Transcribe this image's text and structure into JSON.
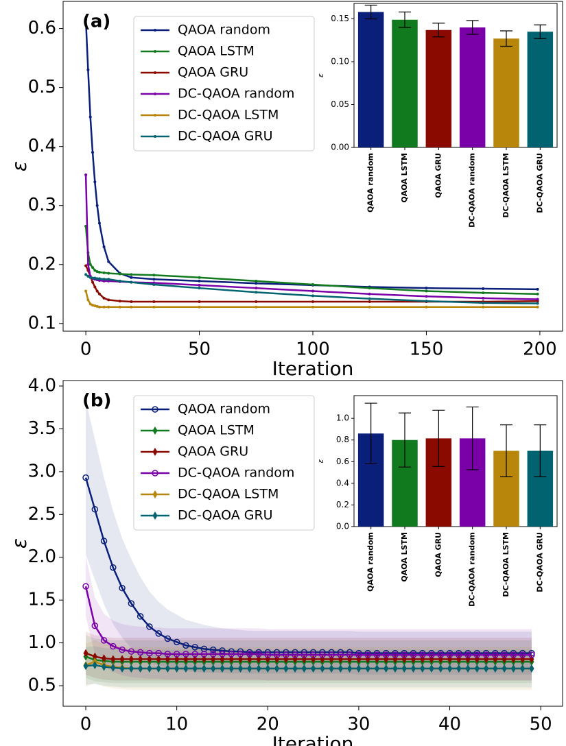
{
  "chart_data": [
    {
      "type": "line",
      "annotation": "(a)",
      "xlabel": "Iteration",
      "ylabel": "ε",
      "xlim": [
        -10,
        210
      ],
      "xticks": [
        0,
        50,
        100,
        150,
        200
      ],
      "ylim": [
        0.087,
        0.646
      ],
      "yticks": [
        0.1,
        0.2,
        0.3,
        0.4,
        0.5,
        0.6
      ],
      "legend_loc": "upper left",
      "x": [
        0,
        1,
        2,
        3,
        4,
        5,
        6,
        8,
        10,
        15,
        20,
        30,
        50,
        75,
        100,
        125,
        150,
        175,
        199
      ],
      "series": [
        {
          "name": "QAOA random",
          "color": "#0a1f7a",
          "marker": ".",
          "values": [
            0.615,
            0.53,
            0.45,
            0.39,
            0.34,
            0.3,
            0.27,
            0.23,
            0.205,
            0.185,
            0.178,
            0.175,
            0.172,
            0.168,
            0.165,
            0.162,
            0.16,
            0.159,
            0.158
          ]
        },
        {
          "name": "QAOA LSTM",
          "color": "#127a1e",
          "marker": ".",
          "values": [
            0.265,
            0.22,
            0.2,
            0.195,
            0.19,
            0.188,
            0.187,
            0.186,
            0.185,
            0.184,
            0.183,
            0.182,
            0.178,
            0.172,
            0.166,
            0.16,
            0.155,
            0.152,
            0.15
          ]
        },
        {
          "name": "QAOA GRU",
          "color": "#8b0a00",
          "marker": ".",
          "values": [
            0.198,
            0.19,
            0.18,
            0.17,
            0.162,
            0.155,
            0.15,
            0.143,
            0.14,
            0.138,
            0.137,
            0.137,
            0.137,
            0.137,
            0.137,
            0.137,
            0.137,
            0.137,
            0.138
          ]
        },
        {
          "name": "DC-QAOA random",
          "color": "#7a00a8",
          "marker": ".",
          "values": [
            0.352,
            0.2,
            0.18,
            0.176,
            0.175,
            0.174,
            0.173,
            0.172,
            0.172,
            0.171,
            0.17,
            0.169,
            0.165,
            0.16,
            0.155,
            0.15,
            0.146,
            0.143,
            0.141
          ]
        },
        {
          "name": "DC-QAOA LSTM",
          "color": "#b8860b",
          "marker": ".",
          "values": [
            0.155,
            0.14,
            0.133,
            0.131,
            0.13,
            0.129,
            0.128,
            0.128,
            0.128,
            0.128,
            0.128,
            0.128,
            0.128,
            0.128,
            0.128,
            0.128,
            0.128,
            0.128,
            0.128
          ]
        },
        {
          "name": "DC-QAOA GRU",
          "color": "#00636f",
          "marker": ".",
          "values": [
            0.183,
            0.18,
            0.178,
            0.177,
            0.177,
            0.176,
            0.176,
            0.175,
            0.175,
            0.172,
            0.17,
            0.166,
            0.16,
            0.153,
            0.147,
            0.142,
            0.138,
            0.135,
            0.134
          ]
        }
      ]
    },
    {
      "type": "bar",
      "ylabel": "ε",
      "categories": [
        "QAOA random",
        "QAOA LSTM",
        "QAOA GRU",
        "DC-QAOA random",
        "DC-QAOA LSTM",
        "DC-QAOA GRU"
      ],
      "values": [
        0.158,
        0.149,
        0.137,
        0.14,
        0.127,
        0.135
      ],
      "errors": [
        0.008,
        0.009,
        0.008,
        0.008,
        0.009,
        0.008
      ],
      "colors": [
        "#0a1f7a",
        "#127a1e",
        "#8b0a00",
        "#7a00a8",
        "#b8860b",
        "#00636f"
      ],
      "ylim": [
        0,
        0.168
      ],
      "yticks": [
        {
          "value": 0,
          "label": "0.00"
        },
        {
          "value": 0.05,
          "label": "0.05"
        },
        {
          "value": 0.1,
          "label": "0.10"
        },
        {
          "value": 0.15,
          "label": "0.15"
        }
      ]
    },
    {
      "type": "line",
      "annotation": "(b)",
      "xlabel": "Iteration",
      "ylabel": "ε",
      "xlim": [
        -2.49,
        52.4
      ],
      "xticks": [
        0,
        10,
        20,
        30,
        40,
        50
      ],
      "ylim": [
        0.26,
        4.064
      ],
      "yticks": [
        0.5,
        {
          "value": 1,
          "label": "1.0"
        },
        1.5,
        {
          "value": 2,
          "label": "2.0"
        },
        2.5,
        {
          "value": 3,
          "label": "3.0"
        },
        3.5,
        {
          "value": 4,
          "label": "4.0"
        }
      ],
      "legend_loc": "upper left",
      "x": [
        0,
        1,
        2,
        3,
        4,
        5,
        6,
        7,
        8,
        9,
        10,
        11,
        12,
        13,
        14,
        15,
        16,
        17,
        18,
        19,
        20,
        21,
        22,
        23,
        24,
        25,
        26,
        27,
        28,
        29,
        30,
        31,
        32,
        33,
        34,
        35,
        36,
        37,
        38,
        39,
        40,
        41,
        42,
        43,
        44,
        45,
        46,
        47,
        48,
        49
      ],
      "series": [
        {
          "name": "QAOA random",
          "color": "#0a1f7a",
          "marker": "o",
          "values": [
            2.93,
            2.56,
            2.19,
            1.88,
            1.64,
            1.46,
            1.31,
            1.19,
            1.11,
            1.05,
            1.01,
            0.97,
            0.95,
            0.93,
            0.92,
            0.91,
            0.9,
            0.9,
            0.89,
            0.89,
            0.89,
            0.89,
            0.89,
            0.89,
            0.89,
            0.89,
            0.89,
            0.89,
            0.89,
            0.89,
            0.88,
            0.88,
            0.88,
            0.88,
            0.88,
            0.88,
            0.88,
            0.88,
            0.88,
            0.88,
            0.88,
            0.88,
            0.88,
            0.88,
            0.88,
            0.88,
            0.88,
            0.88,
            0.88,
            0.88
          ],
          "err": [
            0.9,
            0.82,
            0.74,
            0.66,
            0.58,
            0.52,
            0.46,
            0.41,
            0.37,
            0.34,
            0.32,
            0.3,
            0.29,
            0.28,
            0.27,
            0.26,
            0.26,
            0.25,
            0.25,
            0.25,
            0.25,
            0.25,
            0.25,
            0.25,
            0.25,
            0.25,
            0.25,
            0.25,
            0.25,
            0.25,
            0.25,
            0.25,
            0.25,
            0.25,
            0.25,
            0.25,
            0.25,
            0.25,
            0.25,
            0.25,
            0.25,
            0.25,
            0.25,
            0.25,
            0.25,
            0.25,
            0.25,
            0.25,
            0.25,
            0.25
          ]
        },
        {
          "name": "QAOA LSTM",
          "color": "#127a1e",
          "marker": "d",
          "values": [
            0.84,
            0.8,
            0.79,
            0.78,
            0.78,
            0.78,
            0.78,
            0.78,
            0.78,
            0.78,
            0.78,
            0.78,
            0.78,
            0.78,
            0.78,
            0.78,
            0.78,
            0.78,
            0.78,
            0.78,
            0.78,
            0.78,
            0.78,
            0.78,
            0.78,
            0.78,
            0.78,
            0.78,
            0.78,
            0.78,
            0.78,
            0.78,
            0.78,
            0.78,
            0.78,
            0.78,
            0.78,
            0.78,
            0.78,
            0.78,
            0.78,
            0.78,
            0.78,
            0.78,
            0.78,
            0.78,
            0.78,
            0.78,
            0.78,
            0.78
          ],
          "err": 0.25
        },
        {
          "name": "QAOA GRU",
          "color": "#8b0a00",
          "marker": "d",
          "values": [
            0.88,
            0.84,
            0.82,
            0.81,
            0.81,
            0.81,
            0.81,
            0.81,
            0.81,
            0.81,
            0.81,
            0.81,
            0.81,
            0.81,
            0.81,
            0.81,
            0.81,
            0.81,
            0.81,
            0.81,
            0.81,
            0.81,
            0.81,
            0.81,
            0.81,
            0.81,
            0.81,
            0.81,
            0.81,
            0.81,
            0.81,
            0.81,
            0.81,
            0.81,
            0.81,
            0.81,
            0.81,
            0.81,
            0.81,
            0.81,
            0.81,
            0.81,
            0.81,
            0.81,
            0.81,
            0.81,
            0.81,
            0.81,
            0.81,
            0.81
          ],
          "err": 0.25
        },
        {
          "name": "DC-QAOA random",
          "color": "#7a00a8",
          "marker": "o",
          "values": [
            1.66,
            1.2,
            1.03,
            0.96,
            0.92,
            0.9,
            0.89,
            0.88,
            0.88,
            0.87,
            0.87,
            0.87,
            0.87,
            0.87,
            0.87,
            0.87,
            0.87,
            0.87,
            0.87,
            0.87,
            0.86,
            0.86,
            0.86,
            0.86,
            0.86,
            0.86,
            0.86,
            0.86,
            0.86,
            0.86,
            0.86,
            0.86,
            0.86,
            0.86,
            0.86,
            0.86,
            0.86,
            0.86,
            0.86,
            0.86,
            0.86,
            0.86,
            0.86,
            0.86,
            0.86,
            0.86,
            0.86,
            0.86,
            0.86,
            0.86
          ],
          "err": [
            0.35,
            0.33,
            0.31,
            0.3,
            0.3,
            0.3,
            0.3,
            0.3,
            0.3,
            0.3,
            0.3,
            0.3,
            0.3,
            0.3,
            0.3,
            0.3,
            0.3,
            0.3,
            0.3,
            0.3,
            0.3,
            0.3,
            0.3,
            0.3,
            0.3,
            0.3,
            0.3,
            0.3,
            0.3,
            0.3,
            0.3,
            0.3,
            0.3,
            0.3,
            0.3,
            0.3,
            0.3,
            0.3,
            0.3,
            0.3,
            0.3,
            0.3,
            0.3,
            0.3,
            0.3,
            0.3,
            0.3,
            0.3,
            0.3,
            0.3
          ]
        },
        {
          "name": "DC-QAOA LSTM",
          "color": "#b8860b",
          "marker": "d",
          "values": [
            0.74,
            0.78,
            0.74,
            0.72,
            0.71,
            0.7,
            0.7,
            0.7,
            0.7,
            0.7,
            0.7,
            0.7,
            0.7,
            0.7,
            0.7,
            0.7,
            0.7,
            0.7,
            0.7,
            0.7,
            0.7,
            0.7,
            0.7,
            0.7,
            0.7,
            0.7,
            0.7,
            0.7,
            0.7,
            0.7,
            0.7,
            0.7,
            0.7,
            0.7,
            0.7,
            0.7,
            0.7,
            0.7,
            0.7,
            0.7,
            0.7,
            0.7,
            0.7,
            0.7,
            0.7,
            0.7,
            0.7,
            0.7,
            0.7,
            0.7
          ],
          "err": 0.25
        },
        {
          "name": "DC-QAOA GRU",
          "color": "#00636f",
          "marker": "d",
          "values": [
            0.73,
            0.74,
            0.72,
            0.71,
            0.7,
            0.7,
            0.7,
            0.7,
            0.7,
            0.7,
            0.7,
            0.7,
            0.7,
            0.7,
            0.7,
            0.7,
            0.7,
            0.7,
            0.7,
            0.7,
            0.7,
            0.7,
            0.7,
            0.7,
            0.7,
            0.7,
            0.7,
            0.7,
            0.7,
            0.7,
            0.7,
            0.7,
            0.7,
            0.7,
            0.7,
            0.7,
            0.7,
            0.7,
            0.7,
            0.7,
            0.7,
            0.7,
            0.7,
            0.7,
            0.7,
            0.7,
            0.7,
            0.7,
            0.7,
            0.7
          ],
          "err": 0.22
        }
      ]
    },
    {
      "type": "bar",
      "ylabel": "ε",
      "categories": [
        "QAOA random",
        "QAOA LSTM",
        "QAOA GRU",
        "DC-QAOA random",
        "DC-QAOA LSTM",
        "DC-QAOA GRU"
      ],
      "values": [
        0.86,
        0.8,
        0.815,
        0.815,
        0.7,
        0.7
      ],
      "errors": [
        0.28,
        0.25,
        0.26,
        0.29,
        0.24,
        0.24
      ],
      "colors": [
        "#0a1f7a",
        "#127a1e",
        "#8b0a00",
        "#7a00a8",
        "#b8860b",
        "#00636f"
      ],
      "ylim": [
        0,
        1.21
      ],
      "yticks": [
        {
          "value": 0,
          "label": "0.0"
        },
        0.2,
        0.4,
        0.6,
        0.8,
        {
          "value": 1,
          "label": "1.0"
        }
      ]
    }
  ]
}
